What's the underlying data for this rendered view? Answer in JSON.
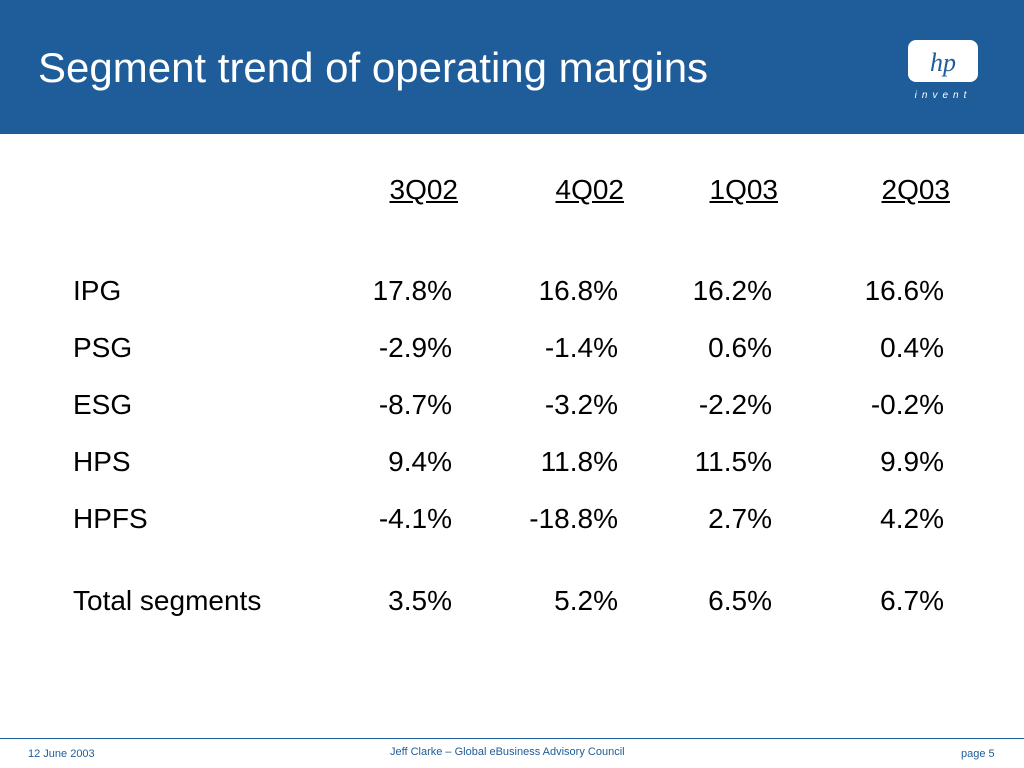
{
  "slide": {
    "title": "Segment trend of operating margins"
  },
  "logo": {
    "mark": "hp",
    "tagline": "invent"
  },
  "table": {
    "columns": [
      "3Q02",
      "4Q02",
      "1Q03",
      "2Q03"
    ],
    "rows": [
      {
        "label": "IPG",
        "values": [
          "17.8%",
          "16.8%",
          "16.2%",
          "16.6%"
        ]
      },
      {
        "label": "PSG",
        "values": [
          "-2.9%",
          "-1.4%",
          "0.6%",
          "0.4%"
        ]
      },
      {
        "label": "ESG",
        "values": [
          "-8.7%",
          "-3.2%",
          "-2.2%",
          "-0.2%"
        ]
      },
      {
        "label": "HPS",
        "values": [
          "9.4%",
          "11.8%",
          "11.5%",
          "9.9%"
        ]
      },
      {
        "label": "HPFS",
        "values": [
          "-4.1%",
          "-18.8%",
          "2.7%",
          "4.2%"
        ]
      },
      {
        "label": "Total segments",
        "values": [
          "3.5%",
          "5.2%",
          "6.5%",
          "6.7%"
        ]
      }
    ]
  },
  "footer": {
    "date": "12 June 2003",
    "presenter": "Jeff Clarke – Global eBusiness Advisory Council",
    "page": "page 5"
  },
  "colors": {
    "header_blue": "#1f5c9a",
    "text": "#000000",
    "footer_text": "#1f5c9a"
  }
}
